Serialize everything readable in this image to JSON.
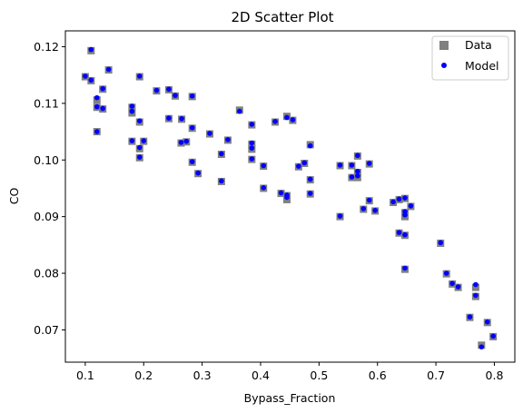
{
  "chart_data": {
    "type": "scatter",
    "title": "2D Scatter Plot",
    "xlabel": "Bypass_Fraction",
    "ylabel": "CO",
    "xlim": [
      0.066,
      0.835
    ],
    "ylim": [
      0.0643,
      0.1228
    ],
    "xticks": [
      0.1,
      0.2,
      0.3,
      0.4,
      0.5,
      0.6,
      0.7,
      0.8
    ],
    "xtick_labels": [
      "0.1",
      "0.2",
      "0.3",
      "0.4",
      "0.5",
      "0.6",
      "0.7",
      "0.8"
    ],
    "yticks": [
      0.07,
      0.08,
      0.09,
      0.1,
      0.11,
      0.12
    ],
    "ytick_labels": [
      "0.07",
      "0.08",
      "0.09",
      "0.10",
      "0.11",
      "0.12"
    ],
    "grid": false,
    "legend": {
      "position": "top-right"
    },
    "colors": {
      "data": "#808080",
      "model": "#0000ff"
    },
    "series": [
      {
        "name": "Data",
        "marker": "square",
        "points": [
          [
            0.11,
            0.1193
          ],
          [
            0.1,
            0.1147
          ],
          [
            0.11,
            0.114
          ],
          [
            0.14,
            0.1159
          ],
          [
            0.13,
            0.1125
          ],
          [
            0.12,
            0.1106
          ],
          [
            0.12,
            0.1093
          ],
          [
            0.13,
            0.109
          ],
          [
            0.12,
            0.105
          ],
          [
            0.193,
            0.1147
          ],
          [
            0.18,
            0.1093
          ],
          [
            0.18,
            0.1083
          ],
          [
            0.193,
            0.1067
          ],
          [
            0.18,
            0.1033
          ],
          [
            0.2,
            0.1033
          ],
          [
            0.193,
            0.102
          ],
          [
            0.193,
            0.1004
          ],
          [
            0.222,
            0.1122
          ],
          [
            0.243,
            0.1124
          ],
          [
            0.254,
            0.1113
          ],
          [
            0.283,
            0.1112
          ],
          [
            0.243,
            0.1073
          ],
          [
            0.265,
            0.1072
          ],
          [
            0.283,
            0.1056
          ],
          [
            0.264,
            0.103
          ],
          [
            0.273,
            0.1032
          ],
          [
            0.313,
            0.1046
          ],
          [
            0.283,
            0.0996
          ],
          [
            0.293,
            0.0976
          ],
          [
            0.333,
            0.101
          ],
          [
            0.344,
            0.1035
          ],
          [
            0.333,
            0.0962
          ],
          [
            0.364,
            0.1088
          ],
          [
            0.385,
            0.1062
          ],
          [
            0.385,
            0.1028
          ],
          [
            0.385,
            0.1019
          ],
          [
            0.385,
            0.1001
          ],
          [
            0.405,
            0.0989
          ],
          [
            0.405,
            0.095
          ],
          [
            0.425,
            0.1067
          ],
          [
            0.445,
            0.1077
          ],
          [
            0.455,
            0.107
          ],
          [
            0.435,
            0.0941
          ],
          [
            0.445,
            0.0937
          ],
          [
            0.445,
            0.093
          ],
          [
            0.465,
            0.0988
          ],
          [
            0.475,
            0.0994
          ],
          [
            0.485,
            0.1027
          ],
          [
            0.485,
            0.0965
          ],
          [
            0.485,
            0.094
          ],
          [
            0.536,
            0.09
          ],
          [
            0.536,
            0.099
          ],
          [
            0.556,
            0.099
          ],
          [
            0.556,
            0.0969
          ],
          [
            0.566,
            0.1007
          ],
          [
            0.566,
            0.0978
          ],
          [
            0.566,
            0.0969
          ],
          [
            0.586,
            0.0993
          ],
          [
            0.576,
            0.0913
          ],
          [
            0.586,
            0.0928
          ],
          [
            0.596,
            0.091
          ],
          [
            0.627,
            0.0925
          ],
          [
            0.637,
            0.093
          ],
          [
            0.647,
            0.0932
          ],
          [
            0.657,
            0.0918
          ],
          [
            0.647,
            0.0907
          ],
          [
            0.647,
            0.09
          ],
          [
            0.637,
            0.0871
          ],
          [
            0.647,
            0.0867
          ],
          [
            0.647,
            0.0807
          ],
          [
            0.708,
            0.0853
          ],
          [
            0.718,
            0.0799
          ],
          [
            0.728,
            0.0781
          ],
          [
            0.738,
            0.0775
          ],
          [
            0.758,
            0.0722
          ],
          [
            0.768,
            0.0775
          ],
          [
            0.768,
            0.0759
          ],
          [
            0.778,
            0.0673
          ],
          [
            0.788,
            0.0713
          ],
          [
            0.798,
            0.0688
          ]
        ]
      },
      {
        "name": "Model",
        "marker": "circle",
        "points": [
          [
            0.11,
            0.1195
          ],
          [
            0.1,
            0.1148
          ],
          [
            0.11,
            0.1141
          ],
          [
            0.14,
            0.116
          ],
          [
            0.13,
            0.1126
          ],
          [
            0.12,
            0.111
          ],
          [
            0.12,
            0.1094
          ],
          [
            0.13,
            0.1091
          ],
          [
            0.12,
            0.105
          ],
          [
            0.193,
            0.1148
          ],
          [
            0.18,
            0.1095
          ],
          [
            0.18,
            0.1086
          ],
          [
            0.193,
            0.1069
          ],
          [
            0.18,
            0.1034
          ],
          [
            0.2,
            0.1034
          ],
          [
            0.193,
            0.1022
          ],
          [
            0.193,
            0.1005
          ],
          [
            0.222,
            0.1123
          ],
          [
            0.243,
            0.1125
          ],
          [
            0.254,
            0.1114
          ],
          [
            0.283,
            0.1113
          ],
          [
            0.243,
            0.1074
          ],
          [
            0.265,
            0.1073
          ],
          [
            0.283,
            0.1057
          ],
          [
            0.264,
            0.1031
          ],
          [
            0.273,
            0.1033
          ],
          [
            0.313,
            0.1047
          ],
          [
            0.283,
            0.0997
          ],
          [
            0.293,
            0.0977
          ],
          [
            0.333,
            0.1011
          ],
          [
            0.344,
            0.1036
          ],
          [
            0.333,
            0.0963
          ],
          [
            0.364,
            0.1086
          ],
          [
            0.385,
            0.1063
          ],
          [
            0.385,
            0.103
          ],
          [
            0.385,
            0.1021
          ],
          [
            0.385,
            0.1002
          ],
          [
            0.405,
            0.099
          ],
          [
            0.405,
            0.0951
          ],
          [
            0.425,
            0.1068
          ],
          [
            0.445,
            0.1075
          ],
          [
            0.455,
            0.1071
          ],
          [
            0.435,
            0.0942
          ],
          [
            0.445,
            0.0938
          ],
          [
            0.445,
            0.0934
          ],
          [
            0.465,
            0.0989
          ],
          [
            0.475,
            0.0995
          ],
          [
            0.485,
            0.1025
          ],
          [
            0.485,
            0.0966
          ],
          [
            0.485,
            0.0941
          ],
          [
            0.536,
            0.0901
          ],
          [
            0.536,
            0.0991
          ],
          [
            0.556,
            0.0991
          ],
          [
            0.556,
            0.097
          ],
          [
            0.566,
            0.1008
          ],
          [
            0.566,
            0.098
          ],
          [
            0.566,
            0.0972
          ],
          [
            0.586,
            0.0994
          ],
          [
            0.576,
            0.0914
          ],
          [
            0.586,
            0.0929
          ],
          [
            0.596,
            0.0911
          ],
          [
            0.627,
            0.0926
          ],
          [
            0.637,
            0.0931
          ],
          [
            0.647,
            0.0933
          ],
          [
            0.657,
            0.0919
          ],
          [
            0.647,
            0.0909
          ],
          [
            0.647,
            0.0903
          ],
          [
            0.637,
            0.0872
          ],
          [
            0.647,
            0.0868
          ],
          [
            0.647,
            0.0809
          ],
          [
            0.708,
            0.0854
          ],
          [
            0.718,
            0.08
          ],
          [
            0.728,
            0.0782
          ],
          [
            0.738,
            0.0776
          ],
          [
            0.758,
            0.0723
          ],
          [
            0.768,
            0.078
          ],
          [
            0.768,
            0.0761
          ],
          [
            0.778,
            0.067
          ],
          [
            0.788,
            0.0714
          ],
          [
            0.798,
            0.0689
          ]
        ]
      }
    ]
  }
}
